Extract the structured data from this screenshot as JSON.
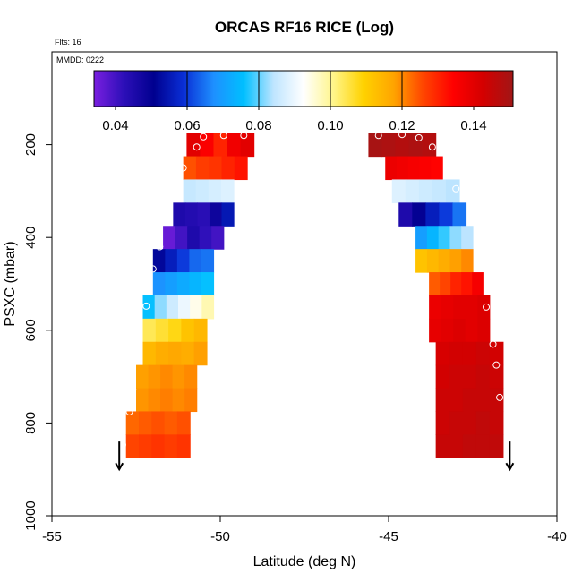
{
  "chart_data": {
    "type": "heatmap",
    "title": "ORCAS RF16 RICE (Log)",
    "subtitle_flights": "Flts: 16",
    "subtitle_date": "MMDD: 0222",
    "xlabel": "Latitude (deg N)",
    "ylabel": "PSXC (mbar)",
    "xlim": [
      -55,
      -40
    ],
    "ylim": [
      1000,
      0
    ],
    "x_ticks": [
      -55,
      -50,
      -45,
      -40
    ],
    "x_tick_labels": [
      "-55",
      "-50",
      "-45",
      "-40"
    ],
    "y_ticks": [
      200,
      400,
      600,
      800,
      1000
    ],
    "y_tick_labels": [
      "200",
      "400",
      "600",
      "800",
      "1000"
    ],
    "colorbar": {
      "range": [
        0.034,
        0.151
      ],
      "ticks": [
        0.04,
        0.06,
        0.08,
        0.1,
        0.12,
        0.14
      ],
      "tick_labels": [
        "0.04",
        "0.06",
        "0.08",
        "0.10",
        "0.12",
        "0.14"
      ],
      "colors": [
        "#7a1fe0",
        "#2c0fb8",
        "#00008f",
        "#0a2fd6",
        "#1e90ff",
        "#00bfff",
        "#bfe5ff",
        "#ffffff",
        "#fff58a",
        "#ffd200",
        "#ffa500",
        "#ff4500",
        "#ff0000",
        "#d40000",
        "#a11616"
      ],
      "dividers": [
        0.06,
        0.08,
        0.1,
        0.12
      ]
    },
    "west_profile": [
      {
        "p_top": 175,
        "p_bot": 225,
        "lat_min": -51.0,
        "lat_max": -49.0,
        "values": [
          0.14,
          0.135,
          0.13,
          0.137,
          0.14
        ]
      },
      {
        "p_top": 225,
        "p_bot": 275,
        "lat_min": -51.1,
        "lat_max": -49.2,
        "values": [
          0.125,
          0.127,
          0.128,
          0.13,
          0.132
        ]
      },
      {
        "p_top": 275,
        "p_bot": 325,
        "lat_min": -51.1,
        "lat_max": -49.6,
        "values": [
          0.085,
          0.086,
          0.087,
          0.088
        ]
      },
      {
        "p_top": 325,
        "p_bot": 375,
        "lat_min": -51.4,
        "lat_max": -49.6,
        "values": [
          0.045,
          0.044,
          0.043,
          0.048,
          0.055
        ]
      },
      {
        "p_top": 375,
        "p_bot": 425,
        "lat_min": -51.7,
        "lat_max": -49.9,
        "values": [
          0.036,
          0.04,
          0.045,
          0.042,
          0.04
        ]
      },
      {
        "p_top": 425,
        "p_bot": 475,
        "lat_min": -52.0,
        "lat_max": -50.2,
        "values": [
          0.052,
          0.056,
          0.06,
          0.064,
          0.065
        ]
      },
      {
        "p_top": 475,
        "p_bot": 525,
        "lat_min": -52.0,
        "lat_max": -50.2,
        "values": [
          0.068,
          0.07,
          0.072,
          0.074,
          0.076
        ]
      },
      {
        "p_top": 525,
        "p_bot": 575,
        "lat_min": -52.3,
        "lat_max": -50.2,
        "values": [
          0.076,
          0.082,
          0.086,
          0.09,
          0.094,
          0.098
        ]
      },
      {
        "p_top": 575,
        "p_bot": 625,
        "lat_min": -52.3,
        "lat_max": -50.4,
        "values": [
          0.104,
          0.106,
          0.108,
          0.112,
          0.114
        ]
      },
      {
        "p_top": 625,
        "p_bot": 675,
        "lat_min": -52.3,
        "lat_max": -50.4,
        "values": [
          0.114,
          0.116,
          0.117,
          0.116,
          0.118
        ]
      },
      {
        "p_top": 675,
        "p_bot": 725,
        "lat_min": -52.5,
        "lat_max": -50.7,
        "values": [
          0.118,
          0.119,
          0.12,
          0.119,
          0.12
        ]
      },
      {
        "p_top": 725,
        "p_bot": 775,
        "lat_min": -52.5,
        "lat_max": -50.7,
        "values": [
          0.119,
          0.12,
          0.121,
          0.12,
          0.121
        ]
      },
      {
        "p_top": 775,
        "p_bot": 825,
        "lat_min": -52.8,
        "lat_max": -50.9,
        "values": [
          0.123,
          0.124,
          0.125,
          0.124,
          0.125
        ]
      },
      {
        "p_top": 825,
        "p_bot": 875,
        "lat_min": -52.8,
        "lat_max": -50.9,
        "values": [
          0.126,
          0.127,
          0.128,
          0.127,
          0.128
        ]
      }
    ],
    "east_profile": [
      {
        "p_top": 175,
        "p_bot": 225,
        "lat_min": -45.6,
        "lat_max": -43.6,
        "values": [
          0.15,
          0.149,
          0.148,
          0.149,
          0.148
        ]
      },
      {
        "p_top": 225,
        "p_bot": 275,
        "lat_min": -45.1,
        "lat_max": -43.4,
        "values": [
          0.138,
          0.137,
          0.136,
          0.135,
          0.134
        ]
      },
      {
        "p_top": 275,
        "p_bot": 325,
        "lat_min": -44.9,
        "lat_max": -42.9,
        "values": [
          0.088,
          0.087,
          0.086,
          0.085,
          0.084
        ]
      },
      {
        "p_top": 325,
        "p_bot": 375,
        "lat_min": -44.7,
        "lat_max": -42.7,
        "values": [
          0.045,
          0.05,
          0.056,
          0.06,
          0.065
        ]
      },
      {
        "p_top": 375,
        "p_bot": 425,
        "lat_min": -44.2,
        "lat_max": -42.5,
        "values": [
          0.07,
          0.074,
          0.078,
          0.082,
          0.084
        ]
      },
      {
        "p_top": 425,
        "p_bot": 475,
        "lat_min": -44.2,
        "lat_max": -42.5,
        "values": [
          0.112,
          0.114,
          0.116,
          0.118,
          0.12
        ]
      },
      {
        "p_top": 475,
        "p_bot": 525,
        "lat_min": -43.8,
        "lat_max": -42.2,
        "values": [
          0.124,
          0.126,
          0.13,
          0.132,
          0.136
        ]
      },
      {
        "p_top": 525,
        "p_bot": 575,
        "lat_min": -43.8,
        "lat_max": -42.0,
        "values": [
          0.138,
          0.139,
          0.14,
          0.14,
          0.141
        ]
      },
      {
        "p_top": 575,
        "p_bot": 625,
        "lat_min": -43.8,
        "lat_max": -42.0,
        "values": [
          0.139,
          0.14,
          0.141,
          0.14,
          0.141
        ]
      },
      {
        "p_top": 625,
        "p_bot": 675,
        "lat_min": -43.6,
        "lat_max": -41.6,
        "values": [
          0.142,
          0.143,
          0.143,
          0.144,
          0.143
        ]
      },
      {
        "p_top": 675,
        "p_bot": 725,
        "lat_min": -43.6,
        "lat_max": -41.6,
        "values": [
          0.143,
          0.144,
          0.144,
          0.145,
          0.144
        ]
      },
      {
        "p_top": 725,
        "p_bot": 775,
        "lat_min": -43.6,
        "lat_max": -41.6,
        "values": [
          0.144,
          0.144,
          0.145,
          0.145,
          0.145
        ]
      },
      {
        "p_top": 775,
        "p_bot": 825,
        "lat_min": -43.6,
        "lat_max": -41.6,
        "values": [
          0.144,
          0.145,
          0.145,
          0.146,
          0.145
        ]
      },
      {
        "p_top": 825,
        "p_bot": 875,
        "lat_min": -43.6,
        "lat_max": -41.6,
        "values": [
          0.145,
          0.145,
          0.146,
          0.146,
          0.146
        ]
      }
    ],
    "flight_points": [
      {
        "lat": -50.7,
        "p": 205
      },
      {
        "lat": -50.5,
        "p": 183
      },
      {
        "lat": -49.9,
        "p": 180
      },
      {
        "lat": -49.3,
        "p": 180
      },
      {
        "lat": -51.1,
        "p": 250
      },
      {
        "lat": -51.8,
        "p": 420
      },
      {
        "lat": -52.0,
        "p": 468
      },
      {
        "lat": -52.2,
        "p": 548
      },
      {
        "lat": -52.6,
        "p": 728
      },
      {
        "lat": -52.7,
        "p": 776
      },
      {
        "lat": -52.9,
        "p": 847
      },
      {
        "lat": -45.3,
        "p": 180
      },
      {
        "lat": -44.6,
        "p": 178
      },
      {
        "lat": -44.1,
        "p": 185
      },
      {
        "lat": -43.7,
        "p": 205
      },
      {
        "lat": -43.0,
        "p": 295
      },
      {
        "lat": -42.1,
        "p": 550
      },
      {
        "lat": -41.9,
        "p": 630
      },
      {
        "lat": -41.8,
        "p": 675
      },
      {
        "lat": -41.7,
        "p": 745
      }
    ],
    "arrows": [
      {
        "lat": -53.0,
        "p_from": 840,
        "p_to": 900,
        "direction": "down"
      },
      {
        "lat": -41.4,
        "p_from": 840,
        "p_to": 900,
        "direction": "down"
      }
    ]
  }
}
